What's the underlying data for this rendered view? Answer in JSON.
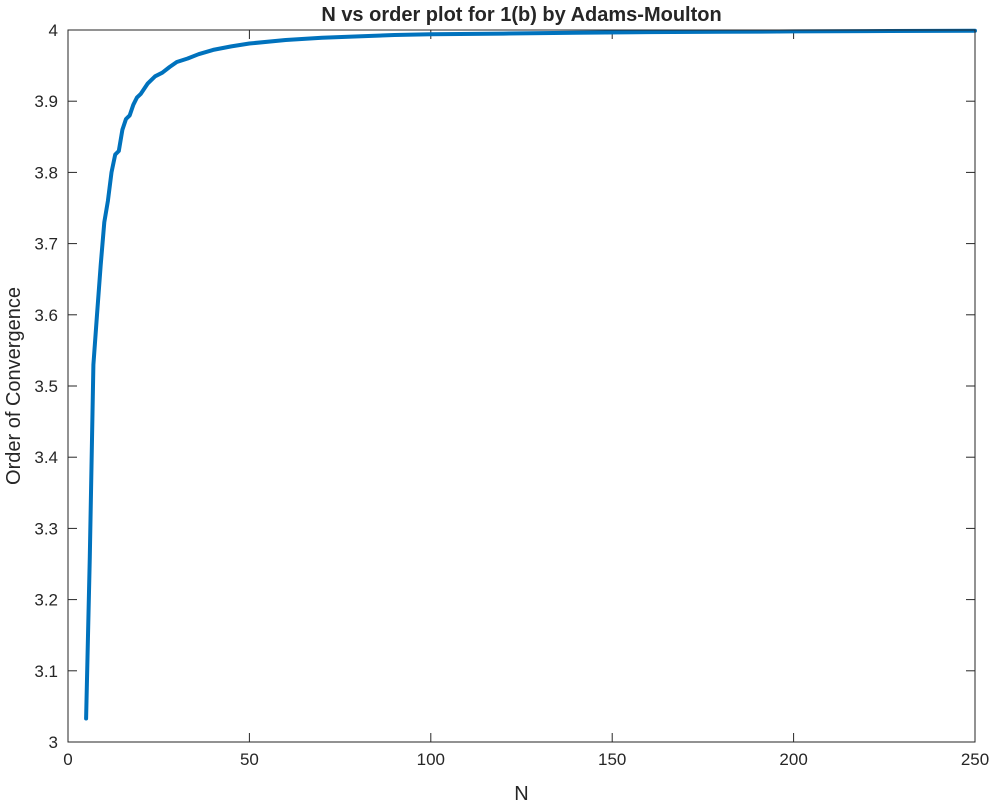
{
  "chart_data": {
    "type": "line",
    "title": "N vs order plot for 1(b) by Adams-Moulton",
    "xlabel": "N",
    "ylabel": "Order of Convergence",
    "xlim": [
      0,
      250
    ],
    "ylim": [
      3,
      4
    ],
    "xticks": [
      0,
      50,
      100,
      150,
      200,
      250
    ],
    "yticks": [
      3,
      3.1,
      3.2,
      3.3,
      3.4,
      3.5,
      3.6,
      3.7,
      3.8,
      3.9,
      4
    ],
    "ytick_labels": [
      "3",
      "3.1",
      "3.2",
      "3.3",
      "3.4",
      "3.5",
      "3.6",
      "3.7",
      "3.8",
      "3.9",
      "4"
    ],
    "grid": false,
    "legend": "none",
    "series": [
      {
        "color": "#0072BD",
        "x": [
          5,
          6,
          7,
          8,
          9,
          10,
          11,
          12,
          13,
          14,
          15,
          16,
          17,
          18,
          19,
          20,
          22,
          24,
          26,
          28,
          30,
          33,
          36,
          40,
          45,
          50,
          60,
          70,
          80,
          90,
          100,
          120,
          140,
          160,
          180,
          200,
          220,
          250
        ],
        "y": [
          3.033,
          3.26,
          3.53,
          3.6,
          3.67,
          3.73,
          3.76,
          3.8,
          3.825,
          3.83,
          3.86,
          3.875,
          3.88,
          3.895,
          3.905,
          3.91,
          3.925,
          3.935,
          3.94,
          3.948,
          3.955,
          3.96,
          3.966,
          3.972,
          3.977,
          3.981,
          3.986,
          3.989,
          3.991,
          3.993,
          3.994,
          3.995,
          3.996,
          3.997,
          3.9975,
          3.998,
          3.9985,
          3.999
        ]
      }
    ]
  }
}
